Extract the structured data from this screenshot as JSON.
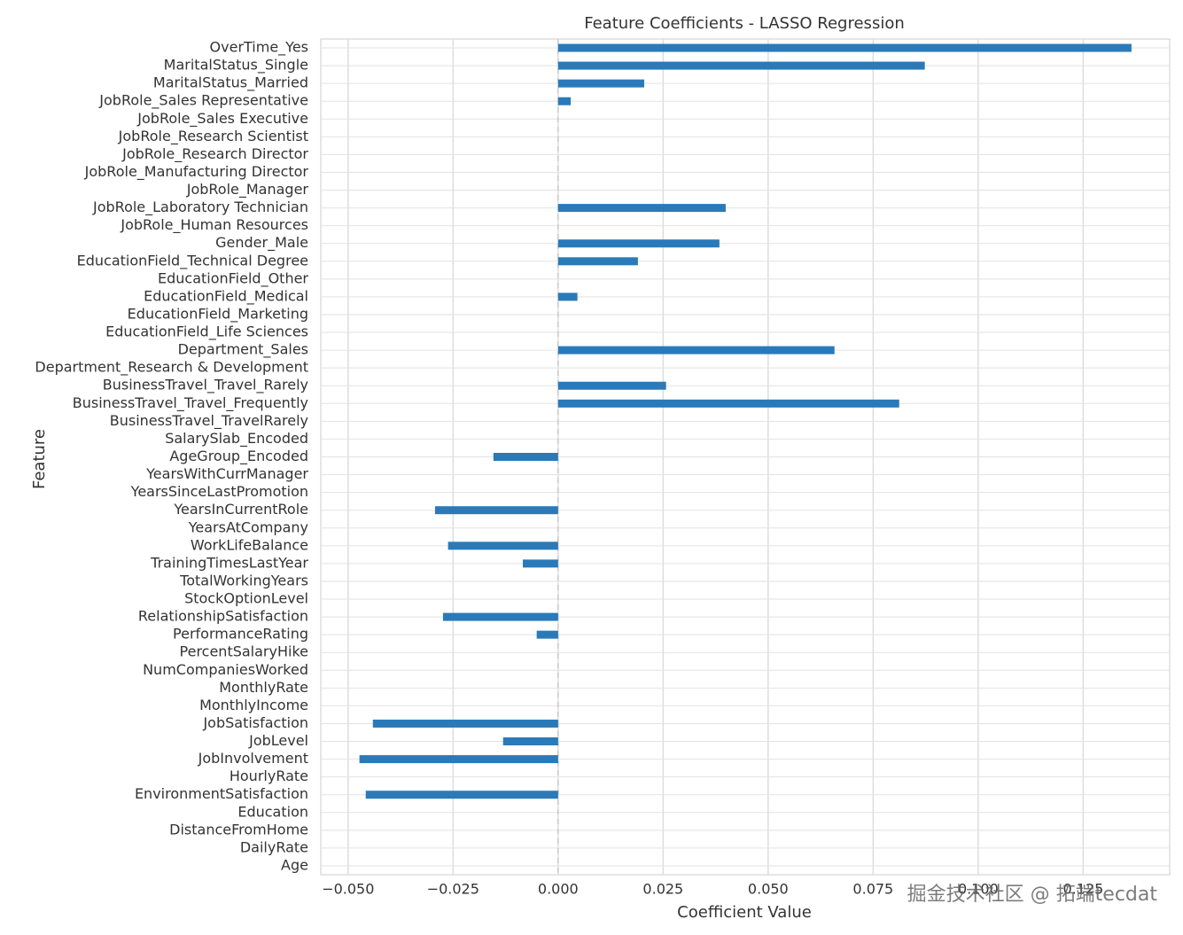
{
  "chart_data": {
    "type": "barh",
    "title": "Feature Coefficients - LASSO Regression",
    "x_label": "Coefficient Value",
    "y_label": "Feature",
    "watermark": "掘金技术社区 @ 拓端tecdat",
    "color": "#2a7ab9",
    "grid": true,
    "categories": [
      "OverTime_Yes",
      "MaritalStatus_Single",
      "MaritalStatus_Married",
      "JobRole_Sales Representative",
      "JobRole_Sales Executive",
      "JobRole_Research Scientist",
      "JobRole_Research Director",
      "JobRole_Manufacturing Director",
      "JobRole_Manager",
      "JobRole_Laboratory Technician",
      "JobRole_Human Resources",
      "Gender_Male",
      "EducationField_Technical Degree",
      "EducationField_Other",
      "EducationField_Medical",
      "EducationField_Marketing",
      "EducationField_Life Sciences",
      "Department_Sales",
      "Department_Research & Development",
      "BusinessTravel_Travel_Rarely",
      "BusinessTravel_Travel_Frequently",
      "BusinessTravel_TravelRarely",
      "SalarySlab_Encoded",
      "AgeGroup_Encoded",
      "YearsWithCurrManager",
      "YearsSinceLastPromotion",
      "YearsInCurrentRole",
      "YearsAtCompany",
      "WorkLifeBalance",
      "TrainingTimesLastYear",
      "TotalWorkingYears",
      "StockOptionLevel",
      "RelationshipSatisfaction",
      "PerformanceRating",
      "PercentSalaryHike",
      "NumCompaniesWorked",
      "MonthlyRate",
      "MonthlyIncome",
      "JobSatisfaction",
      "JobLevel",
      "JobInvolvement",
      "HourlyRate",
      "EnvironmentSatisfaction",
      "Education",
      "DistanceFromHome",
      "DailyRate",
      "Age"
    ],
    "values": [
      0.1365,
      0.0873,
      0.0205,
      0.003,
      0,
      0,
      0,
      0,
      0,
      0.0399,
      0,
      0.0384,
      0.019,
      0,
      0.0046,
      0,
      0,
      0.0658,
      0,
      0.0257,
      0.0812,
      0,
      0,
      -0.0154,
      0,
      0,
      -0.0293,
      0,
      -0.0262,
      -0.0084,
      0,
      0,
      -0.0274,
      -0.0051,
      0,
      0,
      0,
      0,
      -0.0441,
      -0.0131,
      -0.0473,
      0,
      -0.0458,
      0,
      0,
      0,
      0
    ],
    "xlim": [
      -0.0565,
      0.1456
    ],
    "xticks": [
      {
        "value": -0.05,
        "label": "−0.050"
      },
      {
        "value": -0.025,
        "label": "−0.025"
      },
      {
        "value": 0,
        "label": "0.000"
      },
      {
        "value": 0.025,
        "label": "0.025"
      },
      {
        "value": 0.05,
        "label": "0.050"
      },
      {
        "value": 0.075,
        "label": "0.075"
      },
      {
        "value": 0.1,
        "label": "0.100"
      },
      {
        "value": 0.125,
        "label": "0.125"
      }
    ]
  }
}
